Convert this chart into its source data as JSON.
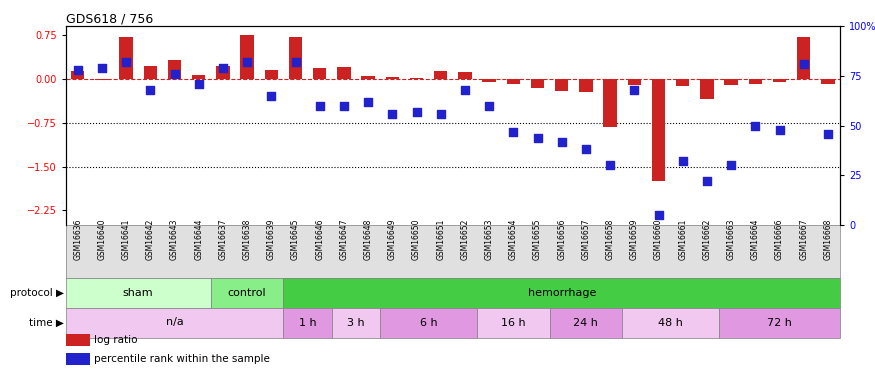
{
  "title": "GDS618 / 756",
  "samples": [
    "GSM16636",
    "GSM16640",
    "GSM16641",
    "GSM16642",
    "GSM16643",
    "GSM16644",
    "GSM16637",
    "GSM16638",
    "GSM16639",
    "GSM16645",
    "GSM16646",
    "GSM16647",
    "GSM16648",
    "GSM16649",
    "GSM16650",
    "GSM16651",
    "GSM16652",
    "GSM16653",
    "GSM16654",
    "GSM16655",
    "GSM16656",
    "GSM16657",
    "GSM16658",
    "GSM16659",
    "GSM16660",
    "GSM16661",
    "GSM16662",
    "GSM16663",
    "GSM16664",
    "GSM16666",
    "GSM16667",
    "GSM16668"
  ],
  "log_ratio": [
    0.13,
    -0.02,
    0.72,
    0.22,
    0.32,
    0.07,
    0.22,
    0.75,
    0.15,
    0.72,
    0.18,
    0.2,
    0.05,
    0.03,
    0.02,
    0.14,
    0.12,
    -0.05,
    -0.08,
    -0.15,
    -0.2,
    -0.22,
    -0.82,
    -0.1,
    -1.75,
    -0.12,
    -0.35,
    -0.1,
    -0.08,
    -0.05,
    0.72,
    -0.08
  ],
  "percentile": [
    78,
    79,
    82,
    68,
    76,
    71,
    79,
    82,
    65,
    82,
    60,
    60,
    62,
    56,
    57,
    56,
    68,
    60,
    47,
    44,
    42,
    38,
    30,
    68,
    5,
    32,
    22,
    30,
    50,
    48,
    81,
    46
  ],
  "protocol_groups": [
    {
      "label": "sham",
      "start": 0,
      "end": 6,
      "color": "#ccffcc"
    },
    {
      "label": "control",
      "start": 6,
      "end": 9,
      "color": "#88ee88"
    },
    {
      "label": "hemorrhage",
      "start": 9,
      "end": 32,
      "color": "#44cc44"
    }
  ],
  "time_groups": [
    {
      "label": "n/a",
      "start": 0,
      "end": 9,
      "color": "#f0c8f0"
    },
    {
      "label": "1 h",
      "start": 9,
      "end": 11,
      "color": "#e099e0"
    },
    {
      "label": "3 h",
      "start": 11,
      "end": 13,
      "color": "#f0c8f0"
    },
    {
      "label": "6 h",
      "start": 13,
      "end": 17,
      "color": "#e099e0"
    },
    {
      "label": "16 h",
      "start": 17,
      "end": 20,
      "color": "#f0c8f0"
    },
    {
      "label": "24 h",
      "start": 20,
      "end": 23,
      "color": "#e099e0"
    },
    {
      "label": "48 h",
      "start": 23,
      "end": 27,
      "color": "#f0c8f0"
    },
    {
      "label": "72 h",
      "start": 27,
      "end": 32,
      "color": "#e099e0"
    }
  ],
  "bar_color": "#cc2222",
  "dot_color": "#2222cc",
  "ylim_left": [
    -2.5,
    0.9
  ],
  "ylim_right": [
    0,
    100
  ],
  "yticks_left": [
    0.75,
    0.0,
    -0.75,
    -1.5,
    -2.25
  ],
  "yticks_right": [
    100,
    75,
    50,
    25,
    0
  ],
  "ytick_right_labels": [
    "100%",
    "75",
    "50",
    "25",
    "0"
  ],
  "hlines": [
    -0.75,
    -1.5
  ],
  "hline_zero_color": "#cc2222",
  "dot_size": 28,
  "bar_width": 0.55,
  "sample_bg": "#e0e0e0"
}
